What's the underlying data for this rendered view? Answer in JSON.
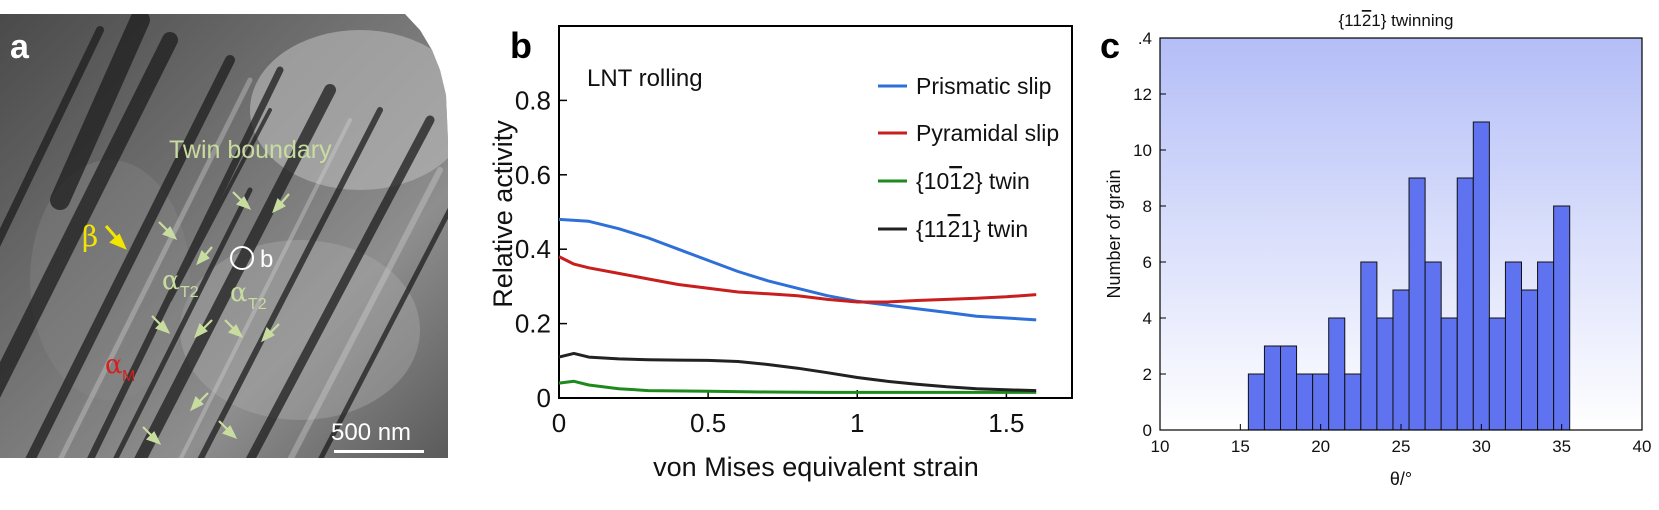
{
  "panel_a": {
    "letter": "a",
    "twin_boundary_label": "Twin boundary",
    "beta_label": "β",
    "alpha_t2_base": "α",
    "alpha_t2_sub": "T2",
    "alpha_m_base": "α",
    "alpha_m_sub": "M",
    "marker_b_label": "b",
    "scale_bar_label": "500 nm",
    "colors": {
      "label_green": "#c8dca0",
      "beta_yellow": "#f2e600",
      "alpha_m_red": "#d42020",
      "white": "#ffffff"
    }
  },
  "chart_data": [
    {
      "panel": "b",
      "type": "line",
      "letter": "b",
      "annotation": "LNT rolling",
      "xlabel": "von Mises equivalent strain",
      "ylabel": "Relative activity",
      "xlim": [
        0,
        1.72
      ],
      "ylim": [
        0,
        1.0
      ],
      "xticks": [
        0,
        0.5,
        1,
        1.5
      ],
      "xtick_labels": [
        "0",
        "0.5",
        "1",
        "1.5"
      ],
      "yticks": [
        0,
        0.2,
        0.4,
        0.6,
        0.8
      ],
      "ytick_labels": [
        "0",
        "0.2",
        "0.4",
        "0.6",
        "0.8"
      ],
      "legend_position": "top-right",
      "series": [
        {
          "name": "Prismatic slip",
          "color": "#2e6fd8",
          "x": [
            0,
            0.1,
            0.2,
            0.3,
            0.4,
            0.5,
            0.6,
            0.7,
            0.8,
            0.9,
            1.0,
            1.1,
            1.2,
            1.3,
            1.4,
            1.5,
            1.6
          ],
          "y": [
            0.48,
            0.475,
            0.455,
            0.43,
            0.4,
            0.37,
            0.34,
            0.315,
            0.295,
            0.275,
            0.26,
            0.25,
            0.24,
            0.23,
            0.22,
            0.215,
            0.21
          ]
        },
        {
          "name": "Pyramidal slip",
          "color": "#c81e1e",
          "x": [
            0,
            0.05,
            0.1,
            0.2,
            0.3,
            0.4,
            0.5,
            0.6,
            0.7,
            0.8,
            0.9,
            1.0,
            1.1,
            1.2,
            1.3,
            1.4,
            1.5,
            1.6
          ],
          "y": [
            0.38,
            0.36,
            0.35,
            0.335,
            0.32,
            0.305,
            0.295,
            0.285,
            0.28,
            0.275,
            0.265,
            0.258,
            0.258,
            0.262,
            0.265,
            0.268,
            0.272,
            0.278
          ]
        },
        {
          "name": "{1012} twin",
          "color": "#1e8a1e",
          "x": [
            0,
            0.05,
            0.1,
            0.2,
            0.3,
            0.5,
            0.7,
            0.9,
            1.1,
            1.3,
            1.5,
            1.6
          ],
          "y": [
            0.04,
            0.045,
            0.035,
            0.025,
            0.02,
            0.018,
            0.016,
            0.015,
            0.015,
            0.015,
            0.015,
            0.015
          ]
        },
        {
          "name": "{1121} twin",
          "color": "#222222",
          "x": [
            0,
            0.05,
            0.1,
            0.2,
            0.3,
            0.4,
            0.5,
            0.6,
            0.7,
            0.8,
            0.9,
            1.0,
            1.1,
            1.2,
            1.3,
            1.4,
            1.5,
            1.6
          ],
          "y": [
            0.11,
            0.12,
            0.11,
            0.105,
            0.103,
            0.102,
            0.101,
            0.098,
            0.09,
            0.08,
            0.068,
            0.055,
            0.045,
            0.037,
            0.03,
            0.025,
            0.022,
            0.02
          ]
        }
      ],
      "legend_labels": [
        {
          "pre": "Prismatic slip"
        },
        {
          "pre": "Pyramidal slip"
        },
        {
          "pre": "{10",
          "bar": "1",
          "post": "2} twin"
        },
        {
          "pre": "{11",
          "bar": "2",
          "post": "1} twin"
        }
      ]
    },
    {
      "panel": "c",
      "type": "bar",
      "letter": "c",
      "title_pre": "{11",
      "title_bar": "2",
      "title_post": "1} twinning",
      "xlabel": "θ/°",
      "ylabel": "Number of grain",
      "xlim": [
        10,
        40
      ],
      "ylim": [
        0,
        14
      ],
      "xticks": [
        10,
        15,
        20,
        25,
        30,
        35,
        40
      ],
      "xtick_labels": [
        "10",
        "15",
        "20",
        "25",
        "30",
        "35",
        "40"
      ],
      "yticks": [
        0,
        2,
        4,
        6,
        8,
        10,
        12
      ],
      "ytick_labels": [
        "0",
        "2",
        "4",
        "6",
        "8",
        "10",
        "12"
      ],
      "top_tick_label": ".4",
      "bar_color": "#5f73f0",
      "bar_width": 1.0,
      "bin_left_edges": [
        15.5,
        16.5,
        17.5,
        18.5,
        19.5,
        20.5,
        21.5,
        22.5,
        23.5,
        24.5,
        25.5,
        26.5,
        27.5,
        28.5,
        29.5,
        30.5,
        31.5,
        32.5,
        33.5,
        34.5
      ],
      "values": [
        2,
        3,
        3,
        2,
        2,
        4,
        2,
        6,
        4,
        5,
        9,
        6,
        4,
        9,
        11,
        4,
        6,
        5,
        6,
        8
      ],
      "background_gradient": [
        "#b4bef7",
        "#ffffff"
      ]
    }
  ]
}
